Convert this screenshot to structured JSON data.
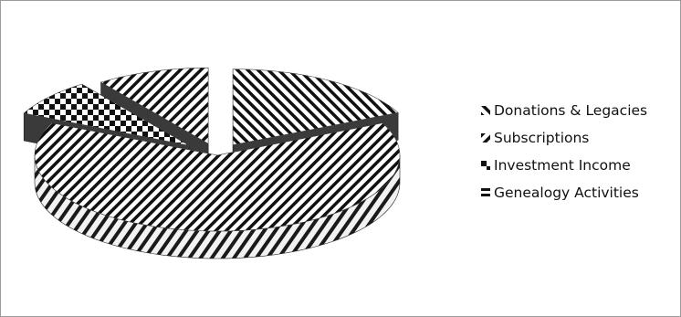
{
  "chart_data": {
    "type": "pie",
    "series": [
      {
        "name": "Donations & Legacies",
        "value": 18
      },
      {
        "name": "Subscriptions",
        "value": 64
      },
      {
        "name": "Investment Income",
        "value": 8
      },
      {
        "name": "Genealogy Activities",
        "value": 10
      }
    ],
    "legend_position": "right",
    "three_d": true,
    "exploded": true,
    "grid": false,
    "colors": [
      "#111111",
      "#ffffff"
    ]
  }
}
